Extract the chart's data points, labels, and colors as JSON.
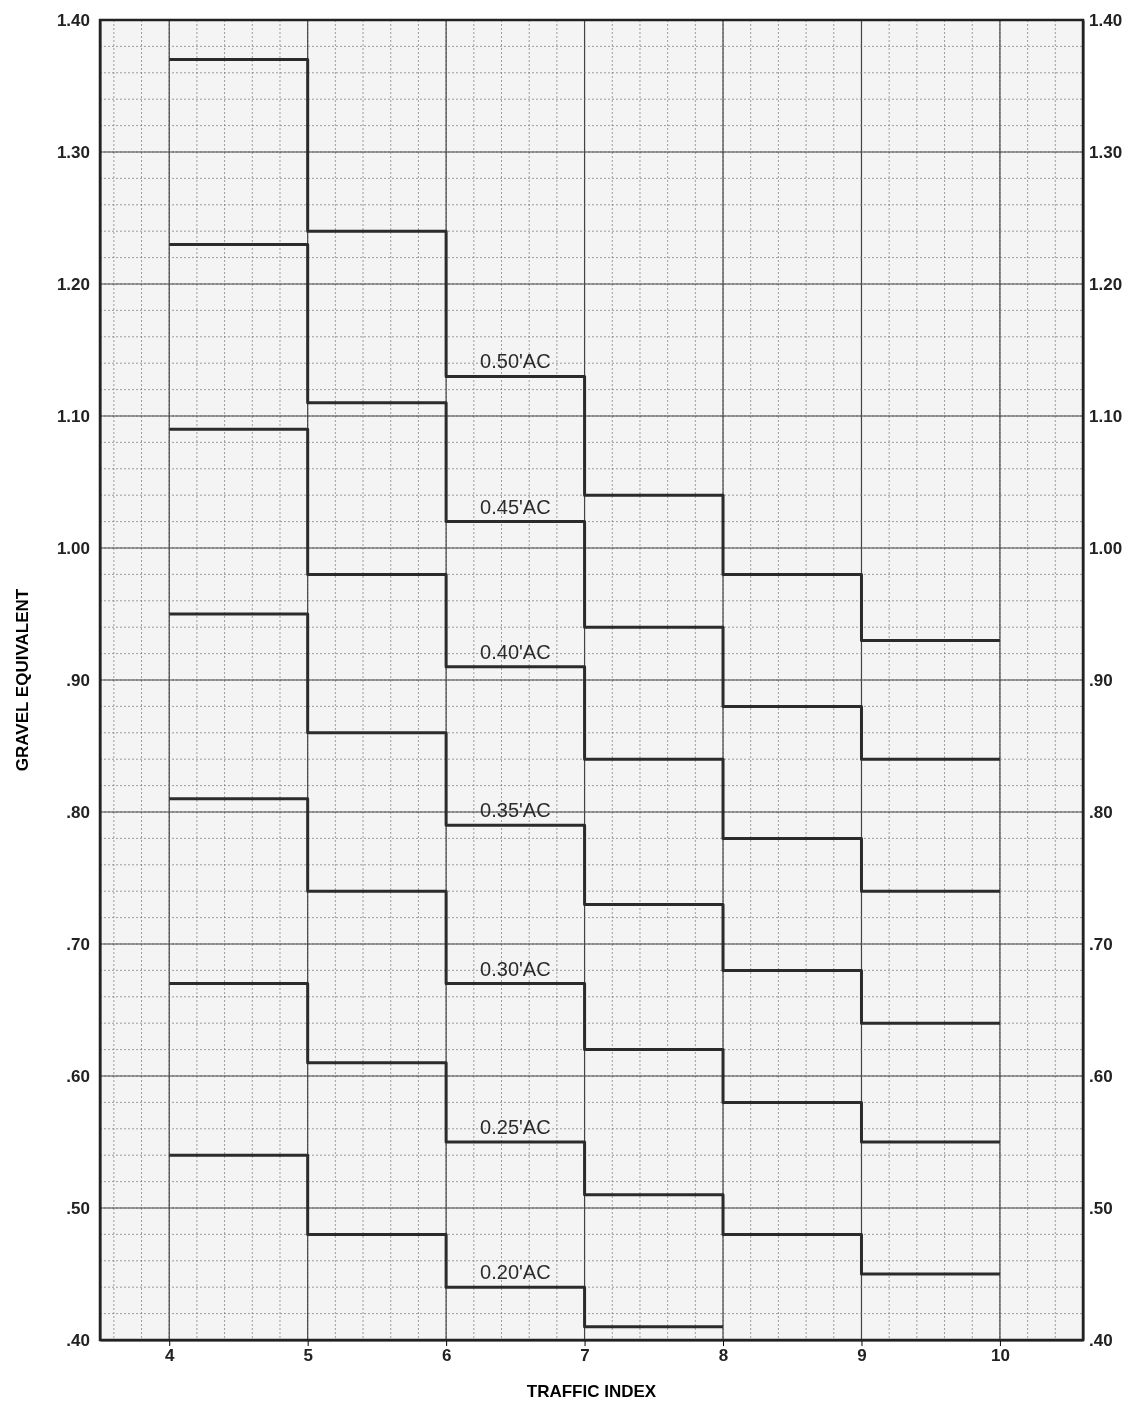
{
  "chart_data": {
    "type": "step",
    "xlabel": "TRAFFIC INDEX",
    "ylabel": "GRAVEL EQUIVALENT",
    "xlim": [
      3.5,
      10.6
    ],
    "xticks": [
      4,
      5,
      6,
      7,
      8,
      9,
      10
    ],
    "ylim": [
      0.4,
      1.4
    ],
    "yticks": [
      {
        "value": 0.4,
        "label": ".40"
      },
      {
        "value": 0.5,
        "label": ".50"
      },
      {
        "value": 0.6,
        "label": ".60"
      },
      {
        "value": 0.7,
        "label": ".70"
      },
      {
        "value": 0.8,
        "label": ".80"
      },
      {
        "value": 0.9,
        "label": ".90"
      },
      {
        "value": 1.0,
        "label": "1.00"
      },
      {
        "value": 1.1,
        "label": "1.10"
      },
      {
        "value": 1.2,
        "label": "1.20"
      },
      {
        "value": 1.3,
        "label": "1.30"
      },
      {
        "value": 1.4,
        "label": "1.40"
      }
    ],
    "y2lim": [
      0.4,
      1.4
    ],
    "y2ticks": [
      {
        "value": 0.4,
        "label": ".40"
      },
      {
        "value": 0.5,
        "label": ".50"
      },
      {
        "value": 0.6,
        "label": ".60"
      },
      {
        "value": 0.7,
        "label": ".70"
      },
      {
        "value": 0.8,
        "label": ".80"
      },
      {
        "value": 0.9,
        "label": ".90"
      },
      {
        "value": 1.0,
        "label": "1.00"
      },
      {
        "value": 1.1,
        "label": "1.10"
      },
      {
        "value": 1.2,
        "label": "1.20"
      },
      {
        "value": 1.3,
        "label": "1.30"
      },
      {
        "value": 1.4,
        "label": "1.40"
      }
    ],
    "grid": true,
    "marker": "none",
    "line_style": "solid",
    "series": [
      {
        "name": "0.50'AC",
        "color": "#2b2b2b",
        "x": [
          4,
          5,
          6,
          7,
          8,
          9,
          10
        ],
        "values": [
          1.37,
          1.24,
          1.13,
          1.04,
          0.98,
          0.93,
          0.93
        ]
      },
      {
        "name": "0.45'AC",
        "color": "#2b2b2b",
        "x": [
          4,
          5,
          6,
          7,
          8,
          9,
          10
        ],
        "values": [
          1.23,
          1.11,
          1.02,
          0.94,
          0.88,
          0.84,
          0.84
        ]
      },
      {
        "name": "0.40'AC",
        "color": "#2b2b2b",
        "x": [
          4,
          5,
          6,
          7,
          8,
          9,
          10
        ],
        "values": [
          1.09,
          0.98,
          0.91,
          0.84,
          0.78,
          0.74,
          0.74
        ]
      },
      {
        "name": "0.35'AC",
        "color": "#2b2b2b",
        "x": [
          4,
          5,
          6,
          7,
          8,
          9,
          10
        ],
        "values": [
          0.95,
          0.86,
          0.79,
          0.73,
          0.68,
          0.64,
          0.64
        ]
      },
      {
        "name": "0.30'AC",
        "color": "#2b2b2b",
        "x": [
          4,
          5,
          6,
          7,
          8,
          9,
          10
        ],
        "values": [
          0.81,
          0.74,
          0.67,
          0.62,
          0.58,
          0.55,
          0.55
        ]
      },
      {
        "name": "0.25'AC",
        "color": "#2b2b2b",
        "x": [
          4,
          5,
          6,
          7,
          8,
          9,
          10
        ],
        "values": [
          0.67,
          0.61,
          0.55,
          0.51,
          0.48,
          0.45,
          0.45
        ]
      },
      {
        "name": "0.20'AC",
        "color": "#2b2b2b",
        "x": [
          4,
          5,
          6,
          7,
          8
        ],
        "values": [
          0.54,
          0.48,
          0.44,
          0.41,
          0.41
        ]
      }
    ]
  }
}
